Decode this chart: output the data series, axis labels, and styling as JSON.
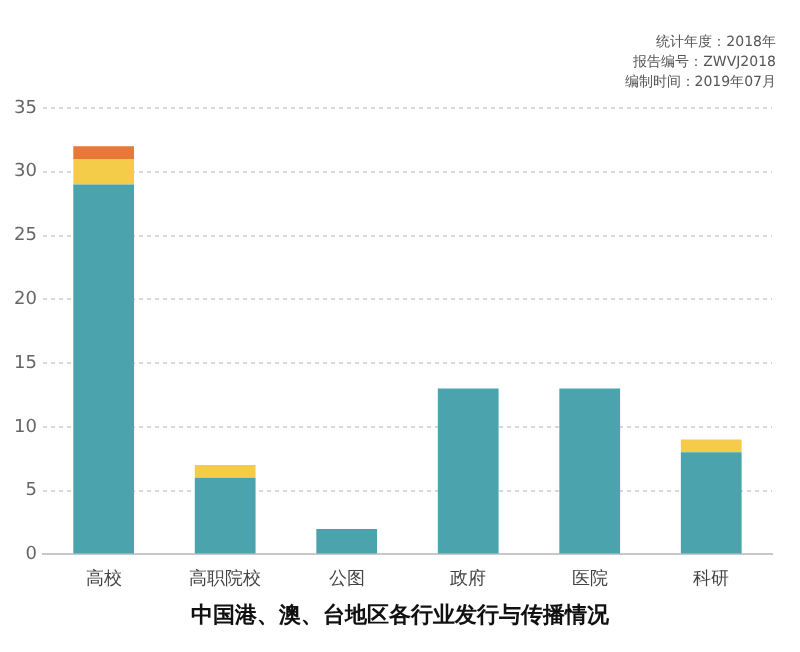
{
  "chart_data": {
    "type": "bar",
    "title": "中国港、澳、台地区各行业发行与传播情况",
    "annotations": [
      "统计年度：2018年",
      "报告编号：ZWVJ2018",
      "编制时间：2019年07月"
    ],
    "categories": [
      "高校",
      "高职院校",
      "公图",
      "政府",
      "医院",
      "科研"
    ],
    "stacked": true,
    "series": [
      {
        "color": "#4aa3ad",
        "values": [
          29,
          6,
          2,
          13,
          13,
          8
        ]
      },
      {
        "color": "#f5cb4a",
        "values": [
          2,
          1,
          0,
          0,
          0,
          1
        ]
      },
      {
        "color": "#e9773a",
        "values": [
          1,
          0,
          0,
          0,
          0,
          0
        ]
      }
    ],
    "ylim": [
      0,
      35
    ],
    "yticks": [
      0,
      5,
      10,
      15,
      20,
      25,
      30,
      35
    ],
    "grid": "y",
    "legend": false
  }
}
